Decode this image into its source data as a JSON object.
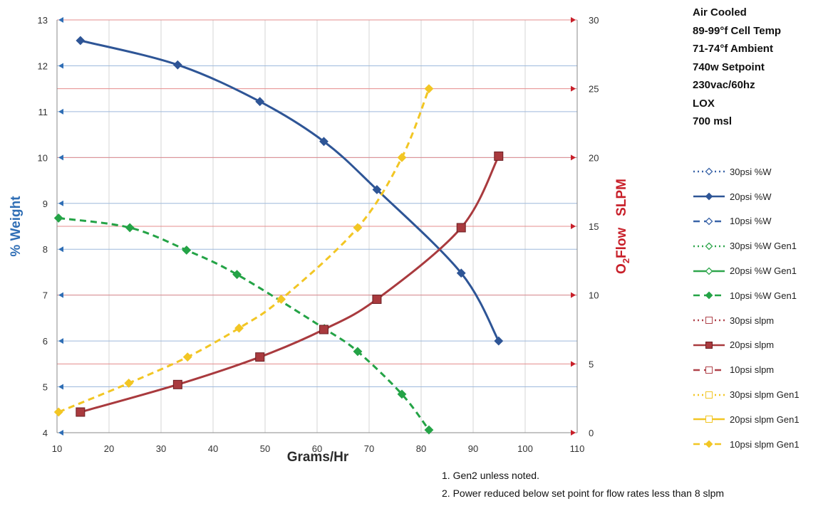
{
  "conditions": [
    "Air Cooled",
    "89-99°f Cell Temp",
    "71-74°f Ambient",
    "740w Setpoint",
    "230vac/60hz",
    "LOX",
    "700 msl"
  ],
  "notes": [
    "1. Gen2 unless noted.",
    "2. Power reduced below set point for flow rates less than 8 slpm"
  ],
  "chart_data": {
    "type": "line",
    "xlabel": "Grams/Hr",
    "ylabel_left": "% Weight",
    "ylabel_right_prefix": "O",
    "ylabel_right_sub": "2",
    "ylabel_right_suffix": "Flow   SLPM",
    "xlim": [
      10,
      110
    ],
    "xticks": [
      "10",
      "20",
      "30",
      "40",
      "50",
      "60",
      "70",
      "80",
      "90",
      "100",
      "110"
    ],
    "ylim_left": [
      4,
      13
    ],
    "yticks_left": [
      "4",
      "5",
      "6",
      "7",
      "8",
      "9",
      "10",
      "11",
      "12",
      "13"
    ],
    "ylim_right": [
      0,
      30
    ],
    "yticks_right": [
      "0",
      "5",
      "10",
      "15",
      "20",
      "25",
      "30"
    ],
    "grid": true,
    "legend_position": "right",
    "legend": [
      {
        "name": "30psi %W",
        "color": "#3A64A8",
        "dash": "dot",
        "marker": "diamond-open"
      },
      {
        "name": "20psi %W",
        "color": "#2E5596",
        "dash": "solid",
        "marker": "diamond"
      },
      {
        "name": "10psi %W",
        "color": "#3A64A8",
        "dash": "dash",
        "marker": "diamond-open"
      },
      {
        "name": "30psi %W Gen1",
        "color": "#2EA64C",
        "dash": "dot",
        "marker": "diamond-open"
      },
      {
        "name": "20psi %W Gen1",
        "color": "#2EA64C",
        "dash": "solid",
        "marker": "diamond-open"
      },
      {
        "name": "10psi %W Gen1",
        "color": "#24A346",
        "dash": "dash",
        "marker": "diamond"
      },
      {
        "name": "30psi slpm",
        "color": "#B0424A",
        "dash": "dot",
        "marker": "square-open"
      },
      {
        "name": "20psi slpm",
        "color": "#A93A3E",
        "dash": "solid",
        "marker": "square"
      },
      {
        "name": "10psi slpm",
        "color": "#B0424A",
        "dash": "dash",
        "marker": "square-open"
      },
      {
        "name": "30psi slpm Gen1",
        "color": "#F2C624",
        "dash": "dot",
        "marker": "square-open"
      },
      {
        "name": "20psi slpm Gen1",
        "color": "#F2C624",
        "dash": "solid",
        "marker": "square-open"
      },
      {
        "name": "10psi slpm Gen1",
        "color": "#F2C624",
        "dash": "dash",
        "marker": "diamond"
      }
    ],
    "series": [
      {
        "name": "20psi %W",
        "axis": "left",
        "color": "#2E5596",
        "dash": "solid",
        "marker": "diamond",
        "x": [
          14.5,
          33.2,
          49,
          61.3,
          71.5,
          87.7,
          94.9
        ],
        "y": [
          12.55,
          12.02,
          11.22,
          10.35,
          9.3,
          7.48,
          6.0
        ]
      },
      {
        "name": "10psi %W Gen1",
        "axis": "left",
        "color": "#24A346",
        "dash": "dash",
        "marker": "diamond",
        "x": [
          10.3,
          24,
          34.9,
          44.6,
          61.4,
          67.8,
          76.3,
          81.5
        ],
        "y": [
          8.68,
          8.47,
          7.98,
          7.45,
          6.27,
          5.77,
          4.84,
          4.06
        ]
      },
      {
        "name": "20psi slpm",
        "axis": "right",
        "color": "#A93A3E",
        "dash": "solid",
        "marker": "square",
        "x": [
          14.5,
          33.2,
          49,
          61.3,
          71.5,
          87.7,
          94.9
        ],
        "y": [
          1.5,
          3.5,
          5.5,
          7.5,
          9.7,
          14.9,
          20.1
        ]
      },
      {
        "name": "10psi slpm Gen1",
        "axis": "right",
        "color": "#F2C624",
        "dash": "dash",
        "marker": "diamond",
        "x": [
          10.3,
          23.8,
          35.1,
          45,
          53.1,
          67.8,
          76.3,
          81.5
        ],
        "y": [
          1.5,
          3.6,
          5.5,
          7.6,
          9.7,
          14.9,
          20.0,
          25.0
        ]
      }
    ]
  }
}
